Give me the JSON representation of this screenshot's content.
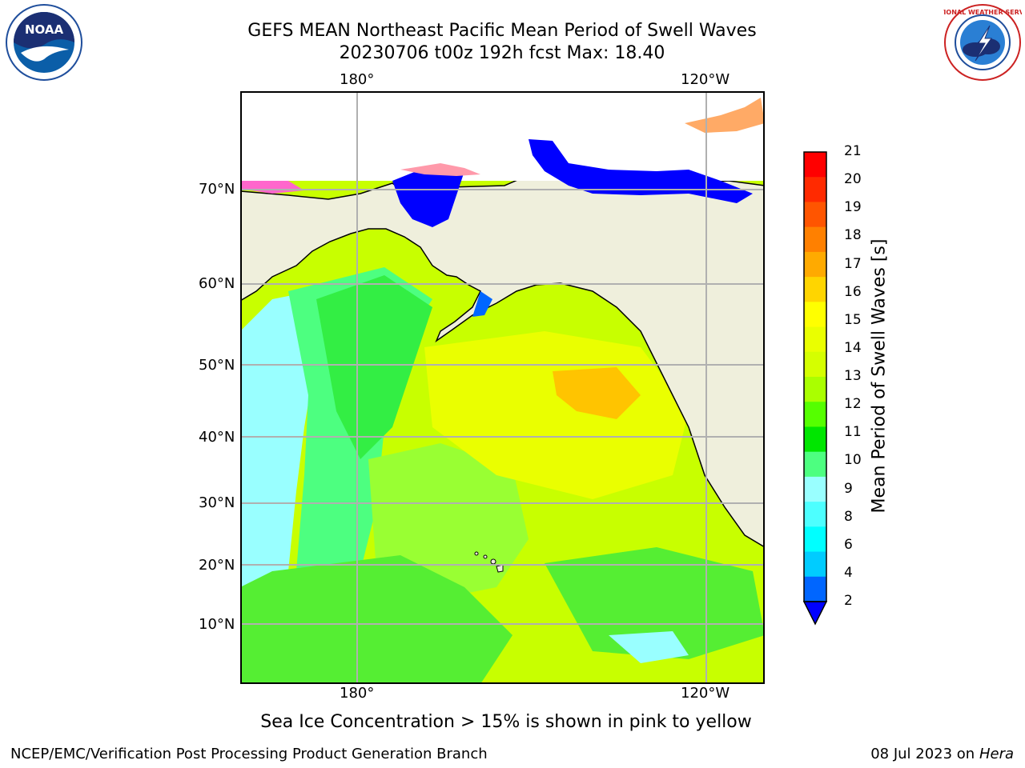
{
  "title": {
    "line1": "GEFS MEAN Northeast Pacific Mean Period of Swell Waves",
    "line2": "20230706 t00z 192h fcst   Max: 18.40"
  },
  "axes": {
    "lon_labels_top": [
      "180°",
      "120°W"
    ],
    "lon_labels_bottom": [
      "180°",
      "120°W"
    ],
    "lat_labels": [
      "70°N",
      "60°N",
      "50°N",
      "40°N",
      "30°N",
      "20°N",
      "10°N"
    ]
  },
  "colorbar": {
    "label": "Mean Period of Swell Waves [s]",
    "ticks": [
      "21",
      "20",
      "19",
      "18",
      "17",
      "16",
      "15",
      "14",
      "13",
      "12",
      "11",
      "10",
      "9",
      "8",
      "6",
      "4",
      "2"
    ],
    "colors": [
      "#ff0000",
      "#ff2a00",
      "#ff5500",
      "#ff8000",
      "#ffaa00",
      "#ffd500",
      "#ffff00",
      "#eaff00",
      "#d5ff00",
      "#aaff00",
      "#55ff00",
      "#00e600",
      "#4dff80",
      "#99ffff",
      "#4dffff",
      "#00ffff",
      "#00ccff",
      "#0066ff"
    ],
    "extend_color": "#0000ff"
  },
  "logos": {
    "left_text": "NOAA",
    "right_text": "NATIONAL WEATHER SERVICE"
  },
  "caption": "Sea Ice Concentration > 15% is shown in pink to yellow",
  "footer": {
    "left": "NCEP/EMC/Verification Post Processing Product Generation Branch",
    "right_prefix": "08 Jul 2023 on ",
    "right_machine": "Hera"
  }
}
